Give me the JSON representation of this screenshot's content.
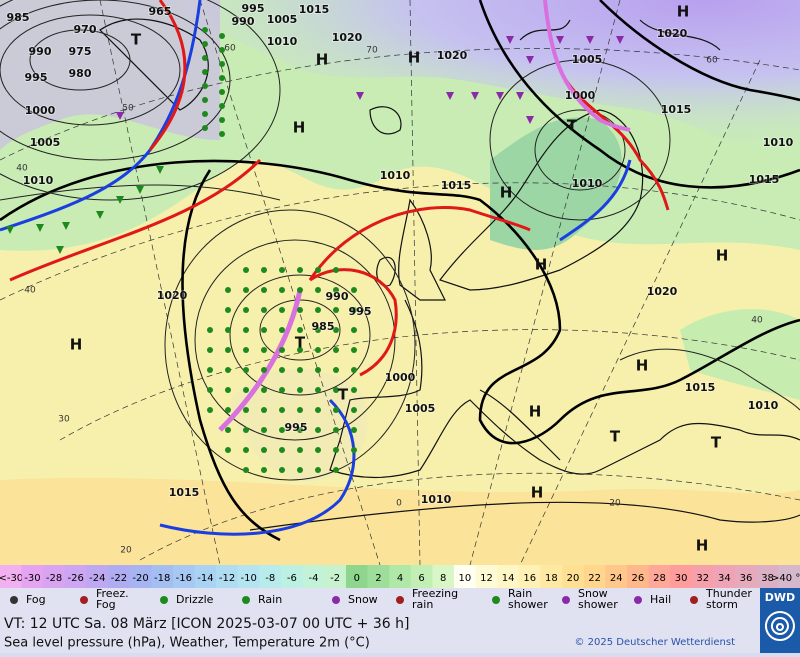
{
  "map": {
    "pressure_labels": [
      "965",
      "985",
      "970",
      "990",
      "975",
      "980",
      "995",
      "1000",
      "1005",
      "1010",
      "990",
      "995",
      "1005",
      "1015",
      "1010",
      "1020",
      "1020",
      "1005",
      "1000",
      "1015",
      "1020",
      "1010",
      "1015",
      "1010",
      "1010",
      "1015",
      "1020",
      "990",
      "995",
      "985",
      "1000",
      "1005",
      "995",
      "1020",
      "1015",
      "1010",
      "1015",
      "1010"
    ],
    "temperature_labels": [
      "60",
      "50",
      "40",
      "40",
      "30",
      "20",
      "70",
      "60",
      "40",
      "20",
      "0"
    ],
    "centers": [
      "H",
      "T",
      "H",
      "H",
      "H",
      "H",
      "T",
      "H",
      "H",
      "H",
      "T",
      "H",
      "H",
      "T",
      "T",
      "T",
      "H",
      "H"
    ]
  },
  "scale": {
    "labels": [
      "<-30",
      "-30",
      "-28",
      "-26",
      "-24",
      "-22",
      "-20",
      "-18",
      "-16",
      "-14",
      "-12",
      "-10",
      "-8",
      "-6",
      "-4",
      "-2",
      "0",
      "2",
      "4",
      "6",
      "8",
      "10",
      "12",
      "14",
      "16",
      "18",
      "20",
      "22",
      "24",
      "26",
      "28",
      "30",
      "32",
      "34",
      "36",
      "38",
      ">40 °C"
    ],
    "colors": [
      "#f2b0f0",
      "#e4a4f2",
      "#d8a4f2",
      "#cca6f2",
      "#bea8f2",
      "#b0acf2",
      "#a6b4f2",
      "#a4bef2",
      "#a6c8f2",
      "#aad2f2",
      "#b0dcf2",
      "#b4e4f0",
      "#b8ecec",
      "#bcf0e2",
      "#c2f2d8",
      "#c8f2ce",
      "#8ed68e",
      "#9ede9a",
      "#b0e8a8",
      "#c2f0b4",
      "#d8f6c6",
      "#fffff2",
      "#fffad6",
      "#fff6c6",
      "#fff0b4",
      "#ffe8a2",
      "#ffe092",
      "#ffd68c",
      "#ffc88a",
      "#ffb88c",
      "#ffa89a",
      "#ff9c9c",
      "#f6a0ac",
      "#eea4b4",
      "#e6aabc",
      "#dcb0c4",
      "#d6b8cc"
    ]
  },
  "legend": [
    "Fog",
    "Freez. Fog",
    "Drizzle",
    "Rain",
    "Snow",
    "Freezing rain",
    "Rain shower",
    "Snow shower",
    "Hail",
    "Thunder storm"
  ],
  "footer": {
    "valid_time": "VT: 12 UTC Sa.  08 März [ICON 2025-03-07  00 UTC + 36 h]",
    "description": "Sea level pressure (hPa), Weather, Temperature 2m (°C)",
    "copyright": "© 2025 Deutscher Wetterdienst",
    "logo": "DWD"
  }
}
